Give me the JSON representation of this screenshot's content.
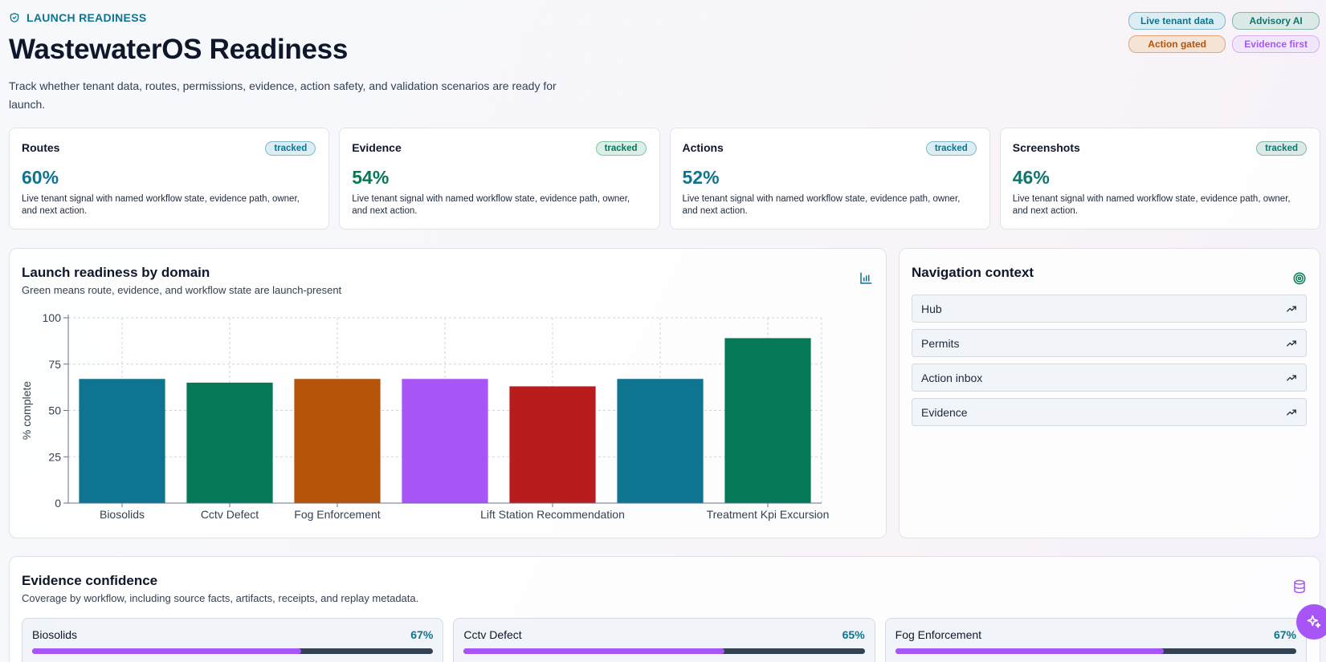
{
  "header": {
    "eyebrow": "LAUNCH READINESS",
    "title": "WastewaterOS Readiness",
    "subtitle": "Track whether tenant data, routes, permissions, evidence, action safety, and validation scenarios are ready for launch."
  },
  "badges": [
    {
      "label": "Live tenant data",
      "color": "#0e7490",
      "bg": "#dbeef4",
      "border": "#7fb8cc"
    },
    {
      "label": "Advisory AI",
      "color": "#0f766e",
      "bg": "#dbe9e7",
      "border": "#86b5ae"
    },
    {
      "label": "Action gated",
      "color": "#b45309",
      "bg": "#f5e3d6",
      "border": "#e1a77b"
    },
    {
      "label": "Evidence first",
      "color": "#a855f7",
      "bg": "#f1e7fb",
      "border": "#d3b0f4"
    }
  ],
  "cards": [
    {
      "label": "Routes",
      "tag": "tracked",
      "value": "60%",
      "value_color": "#0e7490",
      "tag_color": "#0e7490",
      "tag_bg": "#dbeef4",
      "tag_border": "#7fb8cc",
      "desc": "Live tenant signal with named workflow state, evidence path, owner, and next action."
    },
    {
      "label": "Evidence",
      "tag": "tracked",
      "value": "54%",
      "value_color": "#047857",
      "tag_color": "#047857",
      "tag_bg": "#dcefe7",
      "tag_border": "#84c4a8",
      "desc": "Live tenant signal with named workflow state, evidence path, owner, and next action."
    },
    {
      "label": "Actions",
      "tag": "tracked",
      "value": "52%",
      "value_color": "#0e7490",
      "tag_color": "#0e7490",
      "tag_bg": "#dbeef4",
      "tag_border": "#7fb8cc",
      "desc": "Live tenant signal with named workflow state, evidence path, owner, and next action."
    },
    {
      "label": "Screenshots",
      "tag": "tracked",
      "value": "46%",
      "value_color": "#0f766e",
      "tag_color": "#0f766e",
      "tag_bg": "#dbe9e7",
      "tag_border": "#86b5ae",
      "desc": "Live tenant signal with named workflow state, evidence path, owner, and next action."
    }
  ],
  "chart_panel": {
    "title": "Launch readiness by domain",
    "subtitle": "Green means route, evidence, and workflow state are launch-present"
  },
  "chart_data": {
    "type": "bar",
    "categories": [
      "Biosolids",
      "Cctv Defect",
      "Fog Enforcement",
      "",
      "Lift Station Recommendation",
      "",
      "Treatment Kpi Excursion"
    ],
    "values": [
      67,
      65,
      67,
      67,
      63,
      67,
      89
    ],
    "colors": [
      "#0e7490",
      "#047857",
      "#b45309",
      "#a855f7",
      "#b91c1c",
      "#0e7490",
      "#047857"
    ],
    "title": "",
    "xlabel": "",
    "ylabel": "% complete",
    "ylim": [
      0,
      100
    ],
    "yticks": [
      0,
      25,
      50,
      75,
      100
    ],
    "grid": true
  },
  "nav_panel": {
    "title": "Navigation context",
    "items": [
      "Hub",
      "Permits",
      "Action inbox",
      "Evidence"
    ]
  },
  "evidence_panel": {
    "title": "Evidence confidence",
    "subtitle": "Coverage by workflow, including source facts, artifacts, receipts, and replay metadata.",
    "items": [
      {
        "name": "Biosolids",
        "pct": "67%",
        "value": 67
      },
      {
        "name": "Cctv Defect",
        "pct": "65%",
        "value": 65
      },
      {
        "name": "Fog Enforcement",
        "pct": "67%",
        "value": 67
      }
    ]
  },
  "colors": {
    "accent": "#0e7490",
    "purple": "#a855f7"
  }
}
